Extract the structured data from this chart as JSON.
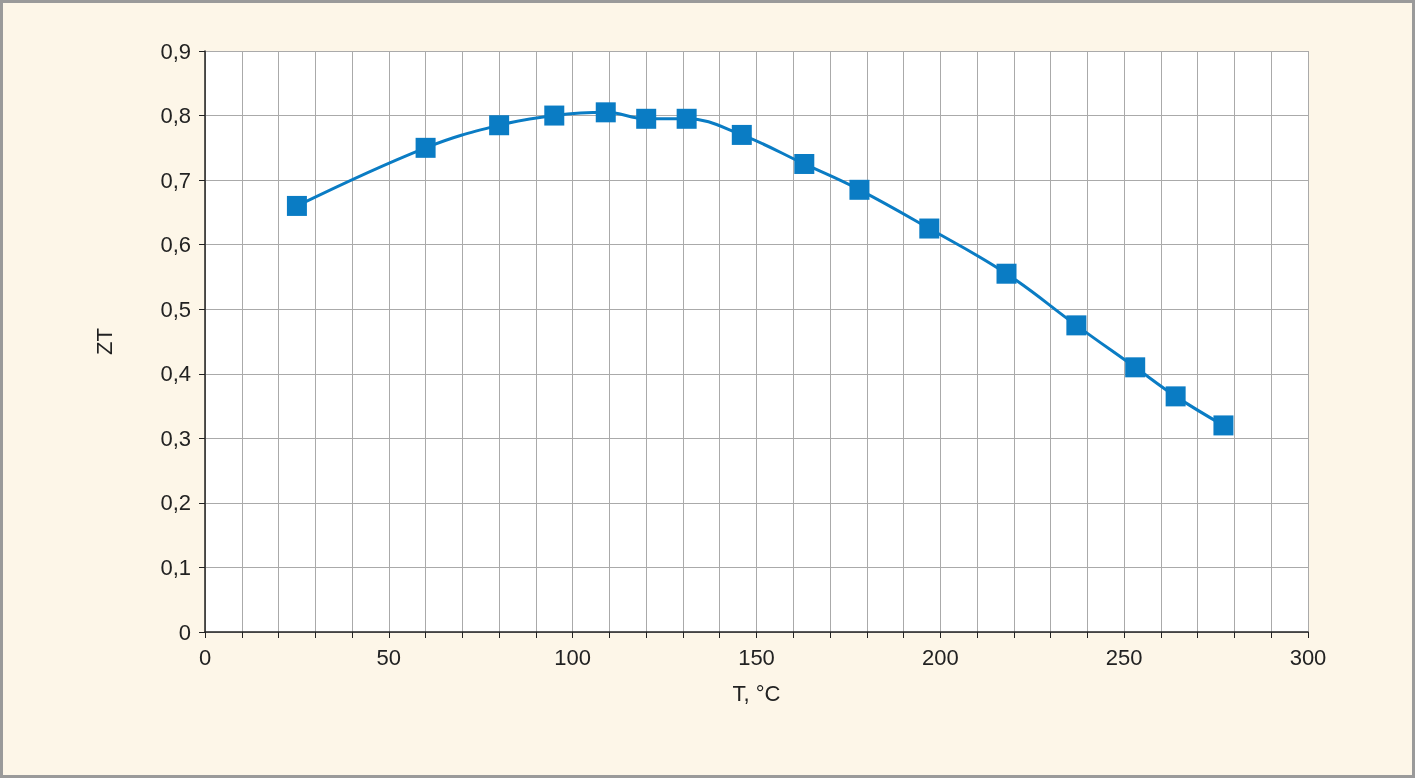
{
  "chart_data": {
    "type": "line",
    "xlabel": "T, °C",
    "ylabel": "ZT",
    "x": [
      25,
      60,
      80,
      95,
      109,
      120,
      131,
      146,
      163,
      178,
      197,
      218,
      237,
      253,
      264,
      277
    ],
    "series": [
      {
        "color": "#0a7cc4",
        "values": [
          0.66,
          0.75,
          0.785,
          0.8,
          0.805,
          0.795,
          0.795,
          0.77,
          0.725,
          0.685,
          0.625,
          0.555,
          0.475,
          0.41,
          0.365,
          0.32
        ]
      }
    ],
    "xlim": [
      0,
      300
    ],
    "xticks": [
      0,
      {
        "value": 10,
        "label": null
      },
      {
        "value": 20,
        "label": null
      },
      {
        "value": 30,
        "label": null
      },
      {
        "value": 40,
        "label": null
      },
      50,
      {
        "value": 60,
        "label": null
      },
      {
        "value": 70,
        "label": null
      },
      {
        "value": 80,
        "label": null
      },
      {
        "value": 90,
        "label": null
      },
      100,
      {
        "value": 110,
        "label": null
      },
      {
        "value": 120,
        "label": null
      },
      {
        "value": 130,
        "label": null
      },
      {
        "value": 140,
        "label": null
      },
      150,
      {
        "value": 160,
        "label": null
      },
      {
        "value": 170,
        "label": null
      },
      {
        "value": 180,
        "label": null
      },
      {
        "value": 190,
        "label": null
      },
      200,
      {
        "value": 210,
        "label": null
      },
      {
        "value": 220,
        "label": null
      },
      {
        "value": 230,
        "label": null
      },
      {
        "value": 240,
        "label": null
      },
      250,
      {
        "value": 260,
        "label": null
      },
      {
        "value": 270,
        "label": null
      },
      {
        "value": 280,
        "label": null
      },
      {
        "value": 290,
        "label": null
      },
      300
    ],
    "ylim": [
      0,
      0.9
    ],
    "yticks": [
      0,
      {
        "value": 0.1,
        "label": "0,1"
      },
      {
        "value": 0.2,
        "label": "0,2"
      },
      {
        "value": 0.3,
        "label": "0,3"
      },
      {
        "value": 0.4,
        "label": "0,4"
      },
      {
        "value": 0.5,
        "label": "0,5"
      },
      {
        "value": 0.6,
        "label": "0,6"
      },
      {
        "value": 0.7,
        "label": "0,7"
      },
      {
        "value": 0.8,
        "label": "0,8"
      },
      {
        "value": 0.9,
        "label": "0,9"
      }
    ],
    "grid": true,
    "marker": "square",
    "line_style": "solid"
  }
}
